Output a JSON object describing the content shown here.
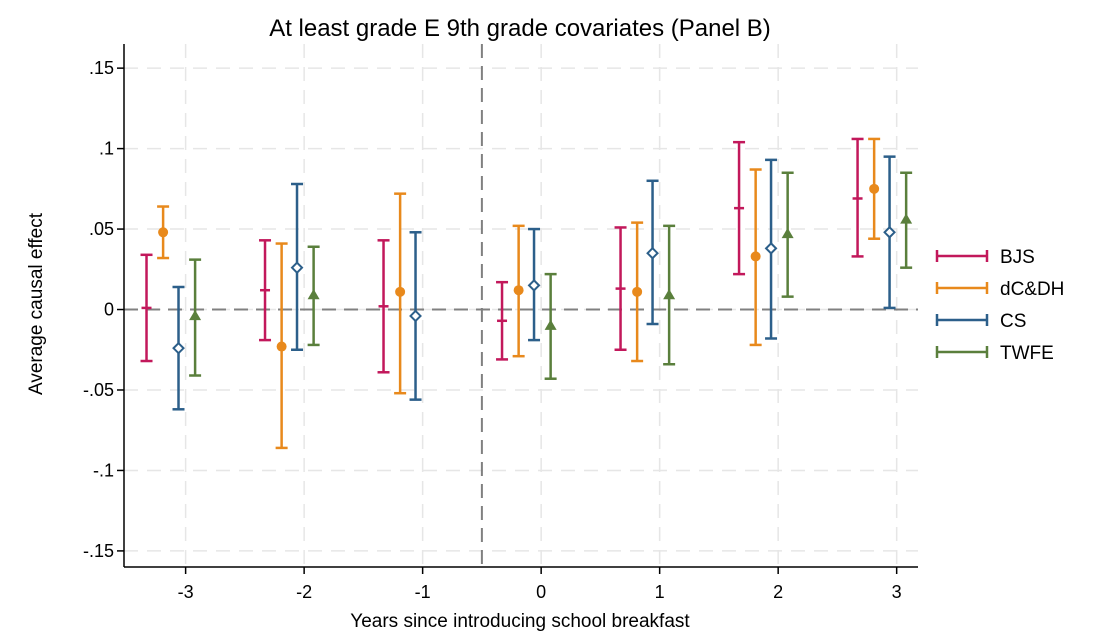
{
  "chart_data": {
    "type": "scatter",
    "title": "At least grade E 9th grade covariates (Panel B)",
    "xlabel": "Years since introducing school breakfast",
    "ylabel": "Average causal effect",
    "x_ticks": [
      -3,
      -2,
      -1,
      0,
      1,
      2,
      3
    ],
    "y_ticks": [
      {
        "value": 0.15,
        "label": ".15"
      },
      {
        "value": 0.1,
        "label": ".1"
      },
      {
        "value": 0.05,
        "label": ".05"
      },
      {
        "value": 0,
        "label": "0"
      },
      {
        "value": -0.05,
        "label": "-.05"
      },
      {
        "value": -0.1,
        "label": "-.1"
      },
      {
        "value": -0.15,
        "label": "-.15"
      }
    ],
    "ylim": [
      -0.16,
      0.165
    ],
    "xlim": [
      -3.52,
      3.18
    ],
    "grid": true,
    "reference_lines": {
      "horizontal_y": 0,
      "vertical_x": -0.5
    },
    "legend_position": "right",
    "series": [
      {
        "name": "BJS",
        "color": "#c2185b",
        "marker": "none",
        "points": [
          {
            "x": -3,
            "est": 0.001,
            "lo": -0.032,
            "hi": 0.034
          },
          {
            "x": -2,
            "est": 0.012,
            "lo": -0.019,
            "hi": 0.043
          },
          {
            "x": -1,
            "est": 0.002,
            "lo": -0.039,
            "hi": 0.043
          },
          {
            "x": 0,
            "est": -0.007,
            "lo": -0.031,
            "hi": 0.017
          },
          {
            "x": 1,
            "est": 0.013,
            "lo": -0.025,
            "hi": 0.051
          },
          {
            "x": 2,
            "est": 0.063,
            "lo": 0.022,
            "hi": 0.104
          },
          {
            "x": 3,
            "est": 0.069,
            "lo": 0.033,
            "hi": 0.106
          }
        ]
      },
      {
        "name": "dC&DH",
        "color": "#e8891c",
        "marker": "circle",
        "points": [
          {
            "x": -3,
            "est": 0.048,
            "lo": 0.032,
            "hi": 0.064
          },
          {
            "x": -2,
            "est": -0.023,
            "lo": -0.086,
            "hi": 0.041
          },
          {
            "x": -1,
            "est": 0.011,
            "lo": -0.052,
            "hi": 0.072
          },
          {
            "x": 0,
            "est": 0.012,
            "lo": -0.029,
            "hi": 0.052
          },
          {
            "x": 1,
            "est": 0.011,
            "lo": -0.032,
            "hi": 0.054
          },
          {
            "x": 2,
            "est": 0.033,
            "lo": -0.022,
            "hi": 0.087
          },
          {
            "x": 3,
            "est": 0.075,
            "lo": 0.044,
            "hi": 0.106
          }
        ]
      },
      {
        "name": "CS",
        "color": "#2c5f8a",
        "marker": "diamond",
        "points": [
          {
            "x": -3,
            "est": -0.024,
            "lo": -0.062,
            "hi": 0.014
          },
          {
            "x": -2,
            "est": 0.026,
            "lo": -0.025,
            "hi": 0.078
          },
          {
            "x": -1,
            "est": -0.004,
            "lo": -0.056,
            "hi": 0.048
          },
          {
            "x": 0,
            "est": 0.015,
            "lo": -0.019,
            "hi": 0.05
          },
          {
            "x": 1,
            "est": 0.035,
            "lo": -0.009,
            "hi": 0.08
          },
          {
            "x": 2,
            "est": 0.038,
            "lo": -0.018,
            "hi": 0.093
          },
          {
            "x": 3,
            "est": 0.048,
            "lo": 0.001,
            "hi": 0.095
          }
        ]
      },
      {
        "name": "TWFE",
        "color": "#5a7f3c",
        "marker": "triangle",
        "points": [
          {
            "x": -3,
            "est": -0.004,
            "lo": -0.041,
            "hi": 0.031
          },
          {
            "x": -2,
            "est": 0.009,
            "lo": -0.022,
            "hi": 0.039
          },
          {
            "x": -1,
            "est": null,
            "lo": null,
            "hi": null
          },
          {
            "x": 0,
            "est": -0.01,
            "lo": -0.043,
            "hi": 0.022
          },
          {
            "x": 1,
            "est": 0.009,
            "lo": -0.034,
            "hi": 0.052
          },
          {
            "x": 2,
            "est": 0.047,
            "lo": 0.008,
            "hi": 0.085
          },
          {
            "x": 3,
            "est": 0.056,
            "lo": 0.026,
            "hi": 0.085
          }
        ]
      }
    ]
  }
}
